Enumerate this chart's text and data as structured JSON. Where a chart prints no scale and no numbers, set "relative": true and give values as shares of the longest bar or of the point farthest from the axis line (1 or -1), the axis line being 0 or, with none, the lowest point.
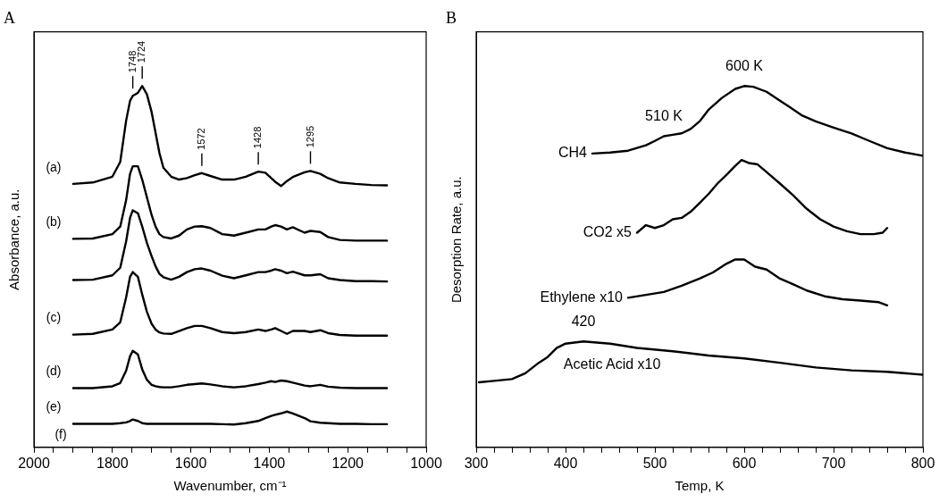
{
  "chart_data": [
    {
      "type": "line",
      "title": "A",
      "xlabel": "Wavenumber, cm⁻¹",
      "ylabel": "Absorbance, a.u.",
      "relative": true,
      "xlim": [
        2000,
        1000
      ],
      "xticks": [
        2000,
        {
          "value": 1950,
          "label": null
        },
        1800,
        {
          "value": 1850,
          "label": null
        },
        {
          "value": 1900,
          "label": null
        },
        {
          "value": 1750,
          "label": null
        },
        1600,
        {
          "value": 1700,
          "label": null
        },
        {
          "value": 1650,
          "label": null
        },
        {
          "value": 1550,
          "label": null
        },
        1400,
        {
          "value": 1500,
          "label": null
        },
        {
          "value": 1450,
          "label": null
        },
        {
          "value": 1350,
          "label": null
        },
        1200,
        {
          "value": 1300,
          "label": null
        },
        {
          "value": 1250,
          "label": null
        },
        {
          "value": 1150,
          "label": null
        },
        1000,
        {
          "value": 1100,
          "label": null
        },
        {
          "value": 1050,
          "label": null
        }
      ],
      "x": [
        1900,
        1850,
        1800,
        1780,
        1765,
        1755,
        1748,
        1735,
        1724,
        1712,
        1700,
        1690,
        1680,
        1670,
        1650,
        1630,
        1610,
        1590,
        1572,
        1550,
        1520,
        1490,
        1460,
        1428,
        1410,
        1395,
        1385,
        1370,
        1355,
        1340,
        1310,
        1295,
        1270,
        1250,
        1220,
        1180,
        1140,
        1100
      ],
      "series": [
        {
          "name": "(a)",
          "color": "#000000",
          "values": [
            0.729,
            0.733,
            0.749,
            0.79,
            0.904,
            0.959,
            0.973,
            0.981,
            1,
            0.977,
            0.928,
            0.871,
            0.814,
            0.774,
            0.749,
            0.741,
            0.745,
            0.753,
            0.759,
            0.751,
            0.741,
            0.741,
            0.749,
            0.763,
            0.76,
            0.745,
            0.735,
            0.723,
            0.737,
            0.748,
            0.761,
            0.765,
            0.757,
            0.745,
            0.733,
            0.729,
            0.726,
            0.725
          ]
        },
        {
          "name": "(b)",
          "color": "#000000",
          "values": [
            0.577,
            0.578,
            0.59,
            0.611,
            0.684,
            0.757,
            0.778,
            0.778,
            0.741,
            0.692,
            0.643,
            0.611,
            0.59,
            0.582,
            0.578,
            0.586,
            0.603,
            0.611,
            0.612,
            0.607,
            0.59,
            0.586,
            0.594,
            0.603,
            0.603,
            0.611,
            0.615,
            0.611,
            0.603,
            0.609,
            0.594,
            0.599,
            0.596,
            0.582,
            0.574,
            0.572,
            0.572,
            0.572
          ]
        },
        {
          "color": "#000000",
          "values": [
            0.463,
            0.464,
            0.476,
            0.497,
            0.57,
            0.635,
            0.656,
            0.648,
            0.611,
            0.566,
            0.529,
            0.501,
            0.48,
            0.471,
            0.464,
            0.472,
            0.485,
            0.493,
            0.495,
            0.489,
            0.475,
            0.468,
            0.476,
            0.485,
            0.485,
            0.489,
            0.493,
            0.489,
            0.482,
            0.486,
            0.476,
            0.476,
            0.479,
            0.468,
            0.463,
            0.46,
            0.46,
            0.459
          ]
        },
        {
          "name": "(c)",
          "color": "#000000",
          "values": [
            0.312,
            0.314,
            0.326,
            0.346,
            0.415,
            0.472,
            0.485,
            0.472,
            0.423,
            0.375,
            0.342,
            0.326,
            0.318,
            0.315,
            0.314,
            0.322,
            0.33,
            0.336,
            0.336,
            0.33,
            0.319,
            0.316,
            0.319,
            0.326,
            0.322,
            0.326,
            0.33,
            0.322,
            0.314,
            0.322,
            0.322,
            0.319,
            0.324,
            0.316,
            0.311,
            0.309,
            0.309,
            0.309
          ]
        },
        {
          "name": "(d)",
          "color": "#000000",
          "values": [
            0.164,
            0.164,
            0.169,
            0.178,
            0.212,
            0.252,
            0.267,
            0.257,
            0.216,
            0.187,
            0.173,
            0.169,
            0.167,
            0.166,
            0.166,
            0.169,
            0.173,
            0.175,
            0.177,
            0.174,
            0.169,
            0.166,
            0.169,
            0.175,
            0.179,
            0.183,
            0.181,
            0.185,
            0.183,
            0.179,
            0.171,
            0.169,
            0.173,
            0.168,
            0.165,
            0.164,
            0.164,
            0.164
          ]
        },
        {
          "name": "(e)",
          "color": "#000000",
          "values": [
            0.065,
            0.065,
            0.065,
            0.067,
            0.069,
            0.073,
            0.077,
            0.073,
            0.067,
            0.065,
            0.065,
            0.065,
            0.065,
            0.065,
            0.065,
            0.065,
            0.065,
            0.065,
            0.065,
            0.065,
            0.064,
            0.063,
            0.067,
            0.073,
            0.081,
            0.087,
            0.09,
            0.094,
            0.099,
            0.094,
            0.081,
            0.072,
            0.068,
            0.067,
            0.065,
            0.065,
            0.064,
            0.064
          ]
        }
      ],
      "annotations": [
        {
          "text": "1748",
          "x": 1748,
          "y": 0.973
        },
        {
          "text": "1724",
          "x": 1724,
          "y": 1
        },
        {
          "text": "1572",
          "x": 1572,
          "y": 0.759
        },
        {
          "text": "1428",
          "x": 1428,
          "y": 0.763
        },
        {
          "text": "1295",
          "x": 1295,
          "y": 0.765
        },
        "(f)"
      ]
    },
    {
      "type": "line",
      "title": "B",
      "xlabel": "Temp, K",
      "ylabel": "Desorption Rate, a.u.",
      "relative": true,
      "xlim": [
        300,
        800
      ],
      "xticks": [
        300,
        {
          "value": 320,
          "label": null
        },
        {
          "value": 340,
          "label": null
        },
        {
          "value": 360,
          "label": null
        },
        {
          "value": 380,
          "label": null
        },
        400,
        {
          "value": 420,
          "label": null
        },
        {
          "value": 440,
          "label": null
        },
        {
          "value": 460,
          "label": null
        },
        {
          "value": 480,
          "label": null
        },
        500,
        {
          "value": 520,
          "label": null
        },
        {
          "value": 540,
          "label": null
        },
        {
          "value": 560,
          "label": null
        },
        {
          "value": 580,
          "label": null
        },
        600,
        {
          "value": 620,
          "label": null
        },
        {
          "value": 640,
          "label": null
        },
        {
          "value": 660,
          "label": null
        },
        {
          "value": 680,
          "label": null
        },
        700,
        {
          "value": 720,
          "label": null
        },
        {
          "value": 740,
          "label": null
        },
        {
          "value": 760,
          "label": null
        },
        {
          "value": 780,
          "label": null
        },
        800
      ],
      "series": [
        {
          "name": "CH4",
          "color": "#000000",
          "x": [
            430,
            450,
            470,
            490,
            500,
            510,
            520,
            530,
            540,
            550,
            560,
            575,
            590,
            600,
            610,
            625,
            640,
            650,
            665,
            680,
            700,
            720,
            740,
            760,
            780,
            800
          ],
          "values": [
            0.813,
            0.816,
            0.821,
            0.836,
            0.848,
            0.861,
            0.865,
            0.869,
            0.881,
            0.902,
            0.934,
            0.967,
            0.992,
            1,
            0.998,
            0.984,
            0.959,
            0.943,
            0.918,
            0.902,
            0.885,
            0.869,
            0.848,
            0.828,
            0.816,
            0.807
          ]
        },
        {
          "name": "CO2 x5",
          "color": "#000000",
          "x": [
            480,
            490,
            500,
            510,
            520,
            530,
            540,
            550,
            560,
            570,
            580,
            590,
            597,
            605,
            615,
            625,
            640,
            655,
            670,
            685,
            700,
            715,
            730,
            745,
            755,
            760
          ],
          "values": [
            0.594,
            0.615,
            0.607,
            0.615,
            0.631,
            0.635,
            0.652,
            0.676,
            0.701,
            0.73,
            0.754,
            0.779,
            0.795,
            0.787,
            0.783,
            0.762,
            0.73,
            0.697,
            0.66,
            0.631,
            0.611,
            0.598,
            0.59,
            0.59,
            0.594,
            0.607
          ]
        },
        {
          "name": "Ethylene x10",
          "color": "#000000",
          "x": [
            470,
            490,
            510,
            530,
            550,
            565,
            580,
            590,
            600,
            612,
            625,
            640,
            655,
            670,
            690,
            710,
            730,
            750,
            760
          ],
          "values": [
            0.414,
            0.422,
            0.43,
            0.447,
            0.467,
            0.484,
            0.508,
            0.52,
            0.52,
            0.5,
            0.492,
            0.467,
            0.451,
            0.434,
            0.418,
            0.41,
            0.406,
            0.402,
            0.393
          ]
        },
        {
          "name": "Acetic Acid x10",
          "color": "#000000",
          "x": [
            303,
            320,
            340,
            355,
            370,
            380,
            390,
            400,
            420,
            450,
            480,
            520,
            560,
            600,
            640,
            680,
            720,
            760,
            800
          ],
          "values": [
            0.18,
            0.184,
            0.189,
            0.205,
            0.234,
            0.25,
            0.275,
            0.287,
            0.293,
            0.287,
            0.275,
            0.266,
            0.254,
            0.246,
            0.234,
            0.221,
            0.213,
            0.209,
            0.201
          ]
        }
      ],
      "annotations": [
        {
          "text": "600 K",
          "x": 600,
          "y": 1
        },
        {
          "text": "510 K",
          "x": 510,
          "y": 0.861
        },
        {
          "text": "420",
          "x": 420,
          "y": 0.293
        }
      ]
    }
  ]
}
